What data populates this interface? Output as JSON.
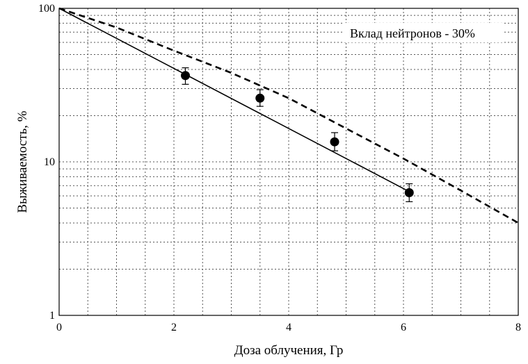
{
  "chart_data": {
    "type": "line",
    "title": "",
    "xlabel": "Доза облучения, Гр",
    "ylabel": "Выживаемость, %",
    "xlim": [
      0,
      8
    ],
    "ylim": [
      1,
      100
    ],
    "yscale": "log",
    "grid": true,
    "x_ticks": [
      0,
      2,
      4,
      6,
      8
    ],
    "x_tick_labels": [
      "0",
      "2",
      "4",
      "6",
      "8"
    ],
    "y_ticks": [
      1,
      10,
      100
    ],
    "y_tick_labels": [
      "1",
      "10",
      "100"
    ],
    "annotation": "Вклад нейтронов - 30%",
    "series": [
      {
        "style": "solid",
        "x": [
          0,
          6.1
        ],
        "y": [
          100,
          6.4
        ]
      },
      {
        "style": "dashed",
        "x": [
          0,
          1,
          2,
          3,
          4,
          5,
          6,
          7,
          8
        ],
        "y": [
          100,
          75,
          53,
          38,
          26,
          16.5,
          10.5,
          6.5,
          4.0
        ]
      },
      {
        "style": "points",
        "x": [
          2.2,
          3.5,
          4.8,
          6.1
        ],
        "y": [
          36.5,
          26,
          13.5,
          6.3
        ],
        "err_low": [
          32,
          23,
          11.8,
          5.5
        ],
        "err_high": [
          41,
          29.5,
          15.5,
          7.2
        ]
      }
    ]
  }
}
